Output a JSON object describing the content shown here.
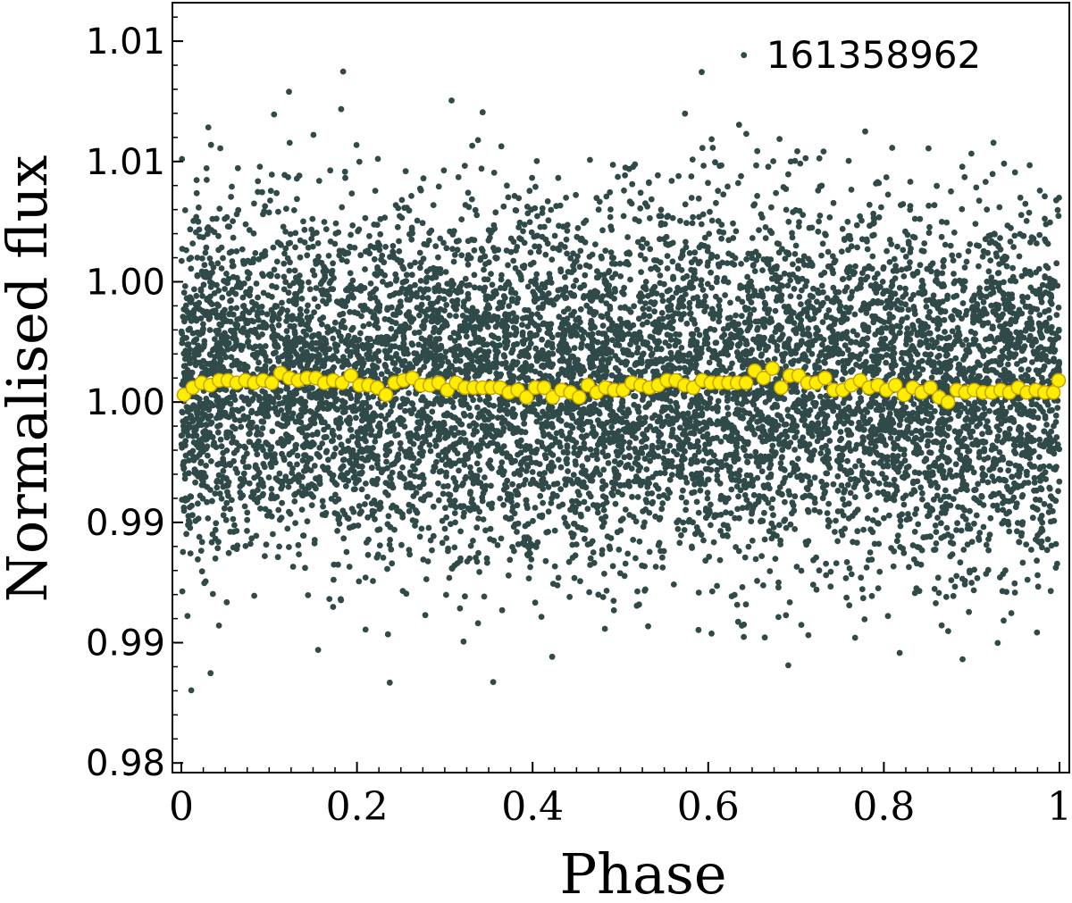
{
  "chart_data": {
    "type": "scatter",
    "title": "",
    "annotation": "161358962",
    "xlabel": "Phase",
    "ylabel": "Normalised flux",
    "xlim": [
      0,
      1.0
    ],
    "ylim": [
      0.9796,
      1.0116
    ],
    "x_ticks": [
      {
        "value": 0,
        "label": "0"
      },
      {
        "value": 0.2,
        "label": "0.2"
      },
      {
        "value": 0.4,
        "label": "0.4"
      },
      {
        "value": 0.6,
        "label": "0.6"
      },
      {
        "value": 0.8,
        "label": "0.8"
      },
      {
        "value": 1.0,
        "label": "1"
      }
    ],
    "y_ticks": [
      {
        "value": 0.98,
        "label": "0.98"
      },
      {
        "value": 0.985,
        "label": "0.99"
      },
      {
        "value": 0.99,
        "label": "0.99"
      },
      {
        "value": 0.995,
        "label": "1.00"
      },
      {
        "value": 1.0,
        "label": "1.00"
      },
      {
        "value": 1.005,
        "label": "1.01"
      },
      {
        "value": 1.01,
        "label": "1.01"
      }
    ],
    "grid": false,
    "colors": {
      "raw": "#2f4a49",
      "binned_fill": "#ffee00",
      "binned_edge": "#c9a200"
    },
    "series": [
      {
        "kind": "raw",
        "n_points": 9000,
        "center": 0.9952,
        "scatter_sigma": 0.0036,
        "y_range": [
          0.9823,
          1.0107
        ]
      },
      {
        "kind": "binned",
        "x": [
          0.003,
          0.013,
          0.023,
          0.033,
          0.043,
          0.053,
          0.063,
          0.073,
          0.083,
          0.093,
          0.103,
          0.113,
          0.123,
          0.133,
          0.143,
          0.153,
          0.163,
          0.173,
          0.183,
          0.193,
          0.203,
          0.213,
          0.223,
          0.233,
          0.243,
          0.253,
          0.263,
          0.273,
          0.283,
          0.293,
          0.303,
          0.313,
          0.323,
          0.333,
          0.343,
          0.353,
          0.363,
          0.373,
          0.383,
          0.393,
          0.403,
          0.413,
          0.423,
          0.433,
          0.443,
          0.453,
          0.463,
          0.473,
          0.483,
          0.493,
          0.503,
          0.513,
          0.523,
          0.533,
          0.543,
          0.553,
          0.563,
          0.573,
          0.583,
          0.593,
          0.603,
          0.613,
          0.623,
          0.633,
          0.643,
          0.653,
          0.663,
          0.673,
          0.683,
          0.693,
          0.703,
          0.713,
          0.723,
          0.733,
          0.743,
          0.753,
          0.763,
          0.773,
          0.783,
          0.793,
          0.803,
          0.813,
          0.823,
          0.833,
          0.843,
          0.853,
          0.863,
          0.873,
          0.883,
          0.893,
          0.903,
          0.913,
          0.923,
          0.933,
          0.943,
          0.953,
          0.963,
          0.973,
          0.983,
          0.993,
          0.999
        ],
        "y": [
          0.9953,
          0.9956,
          0.9958,
          0.9957,
          0.9959,
          0.9959,
          0.9958,
          0.9959,
          0.9958,
          0.9959,
          0.9958,
          0.9962,
          0.996,
          0.9959,
          0.996,
          0.996,
          0.9958,
          0.9959,
          0.9958,
          0.9961,
          0.9957,
          0.9957,
          0.9956,
          0.9953,
          0.9958,
          0.9959,
          0.996,
          0.9957,
          0.9957,
          0.9958,
          0.9955,
          0.9958,
          0.9956,
          0.9956,
          0.9956,
          0.9956,
          0.9956,
          0.9954,
          0.9955,
          0.9952,
          0.9956,
          0.9956,
          0.9952,
          0.9955,
          0.9954,
          0.9952,
          0.9957,
          0.9954,
          0.9956,
          0.9955,
          0.9955,
          0.9958,
          0.9957,
          0.9956,
          0.9957,
          0.9959,
          0.9959,
          0.9957,
          0.9956,
          0.9959,
          0.9958,
          0.9958,
          0.9958,
          0.9958,
          0.9958,
          0.9963,
          0.996,
          0.9964,
          0.9956,
          0.9961,
          0.9961,
          0.9958,
          0.9958,
          0.996,
          0.9955,
          0.9955,
          0.9957,
          0.9959,
          0.9956,
          0.9957,
          0.9955,
          0.9957,
          0.9953,
          0.9956,
          0.9954,
          0.9956,
          0.9952,
          0.995,
          0.9955,
          0.9954,
          0.9955,
          0.9954,
          0.9954,
          0.9955,
          0.9954,
          0.9956,
          0.9954,
          0.9955,
          0.9954,
          0.9954,
          0.9959
        ]
      }
    ]
  }
}
